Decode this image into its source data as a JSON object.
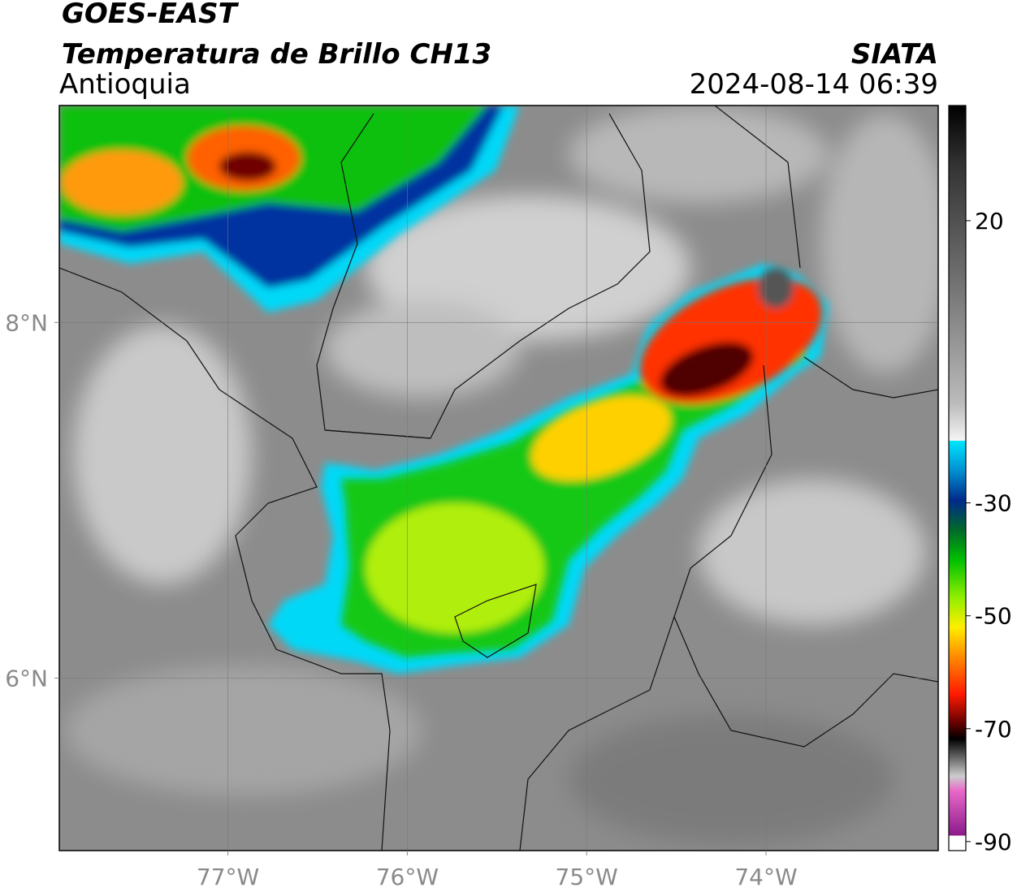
{
  "header": {
    "title": "GOES-EAST",
    "subtitle": "Temperatura de Brillo CH13",
    "region": "Antioquia",
    "source": "SIATA",
    "datetime": "2024-08-14 06:39"
  },
  "map": {
    "xlim": [
      -77.94,
      -73.04
    ],
    "ylim": [
      5.03,
      9.22
    ],
    "xticks": [
      {
        "value": -77,
        "label": "77°W"
      },
      {
        "value": -76,
        "label": "76°W"
      },
      {
        "value": -75,
        "label": "75°W"
      },
      {
        "value": -74,
        "label": "74°W"
      }
    ],
    "yticks": [
      {
        "value": 8,
        "label": "8°N"
      },
      {
        "value": 6,
        "label": "6°N"
      }
    ],
    "grid": true
  },
  "colorbar": {
    "clim": [
      -91.6,
      40.4
    ],
    "ticks": [
      20,
      -30,
      -50,
      -70,
      -90
    ]
  }
}
